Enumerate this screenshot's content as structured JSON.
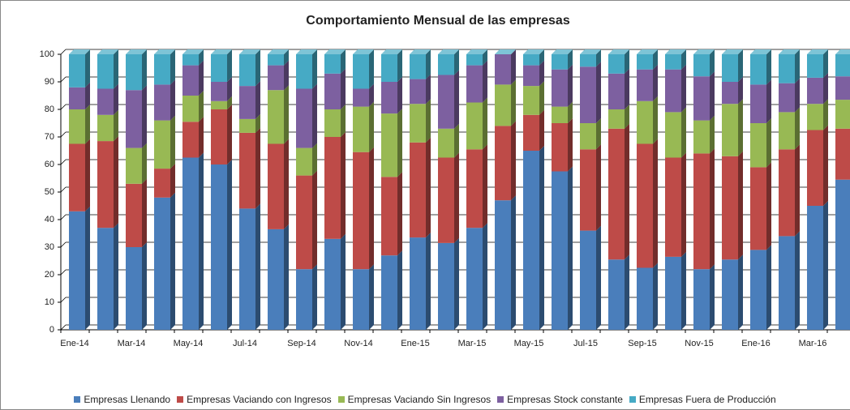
{
  "chart_data": {
    "type": "stacked-bar-3d",
    "title": "Comportamiento Mensual de las empresas",
    "categories": [
      "Ene-14",
      null,
      "Mar-14",
      null,
      "May-14",
      null,
      "Jul-14",
      null,
      "Sep-14",
      null,
      "Nov-14",
      null,
      "Ene-15",
      null,
      "Mar-15",
      null,
      "May-15",
      null,
      "Jul-15",
      null,
      "Sep-15",
      null,
      "Nov-15",
      null,
      "Ene-16",
      null,
      "Mar-16",
      null
    ],
    "series": [
      {
        "name": "Empresas Llenando",
        "color": "#4a7ebb",
        "values": [
          43,
          37,
          30,
          48,
          62.5,
          60,
          44,
          36.5,
          22,
          33,
          22,
          27,
          33.5,
          31.5,
          37,
          47,
          65,
          57.5,
          36,
          25.5,
          22.5,
          26.5,
          22,
          25.5,
          29,
          34,
          45,
          54.5
        ]
      },
      {
        "name": "Empresas Vaciando con Ingresos",
        "color": "#be4b48",
        "values": [
          24.5,
          31.5,
          23,
          10.5,
          13,
          20,
          27.5,
          31,
          34,
          37,
          42.5,
          28.5,
          34.5,
          31,
          28.5,
          27,
          13,
          17.5,
          29.5,
          47.5,
          45,
          36,
          42,
          37.5,
          30,
          31.5,
          27.5,
          18.5
        ]
      },
      {
        "name": "Empresas Vaciando Sin Ingresos",
        "color": "#98b954",
        "values": [
          12.5,
          9.5,
          13,
          17.5,
          9.5,
          3,
          5,
          19.5,
          10,
          10,
          16.5,
          23,
          14,
          10.5,
          17,
          15,
          10.5,
          6,
          9.5,
          7,
          15.5,
          16.5,
          12,
          19,
          16,
          13.5,
          9.5,
          10.5
        ]
      },
      {
        "name": "Empresas Stock constante",
        "color": "#7d60a0",
        "values": [
          8,
          9.5,
          21,
          13,
          11,
          7,
          12,
          9,
          21.5,
          13,
          6.5,
          11.5,
          9,
          19.5,
          13.5,
          11,
          7.5,
          13.5,
          20.5,
          13,
          11.5,
          15.5,
          16,
          8,
          14,
          10.5,
          9.5,
          8.5
        ]
      },
      {
        "name": "Empresas Fuera de Producción",
        "color": "#46aac5",
        "values": [
          12,
          12.5,
          13,
          11,
          4,
          10,
          11.5,
          4,
          12.5,
          7,
          12.5,
          10,
          9,
          7.5,
          4,
          0,
          4,
          5.5,
          4.5,
          7,
          5.5,
          5.5,
          8,
          10,
          11,
          10.5,
          8.5,
          8
        ]
      }
    ],
    "ylim": [
      0,
      100
    ],
    "yticks": [
      0,
      10,
      20,
      30,
      40,
      50,
      60,
      70,
      80,
      90,
      100
    ],
    "grid": true
  }
}
